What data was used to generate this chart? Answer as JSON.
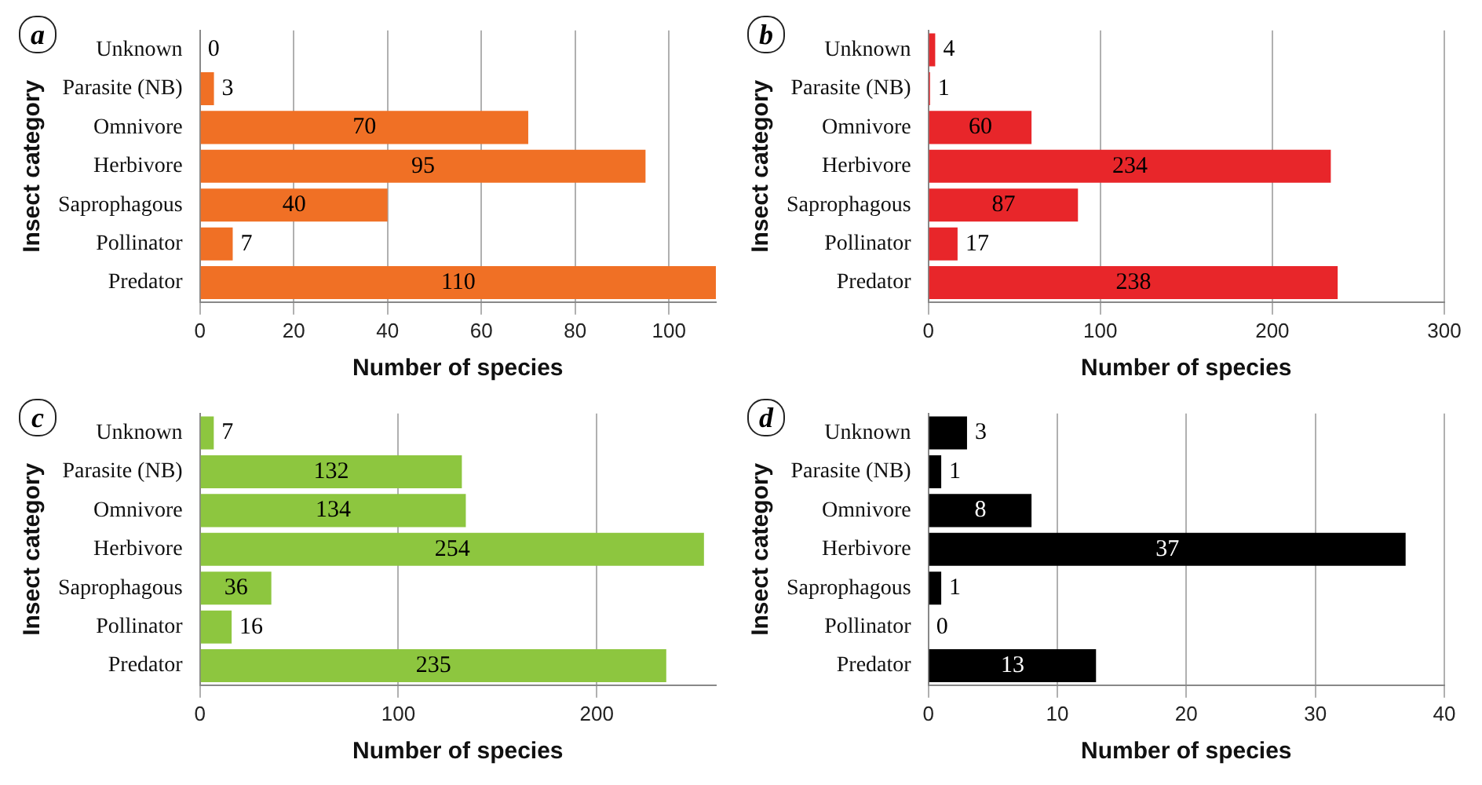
{
  "chart_data": [
    {
      "type": "bar",
      "orientation": "horizontal",
      "annotations": [
        "a"
      ],
      "categories": [
        "Unknown",
        "Parasite (NB)",
        "Omnivore",
        "Herbivore",
        "Saprophagous",
        "Pollinator",
        "Predator"
      ],
      "values": [
        0,
        3,
        70,
        95,
        40,
        7,
        110
      ],
      "color": "#f07025",
      "xlim": [
        0,
        110
      ],
      "xticks": [
        0,
        20,
        40,
        60,
        80,
        100
      ],
      "xlabel": "Number of species",
      "ylabel": "Insect category",
      "grid": "x",
      "data_labels": true
    },
    {
      "type": "bar",
      "orientation": "horizontal",
      "annotations": [
        "b"
      ],
      "categories": [
        "Unknown",
        "Parasite (NB)",
        "Omnivore",
        "Herbivore",
        "Saprophagous",
        "Pollinator",
        "Predator"
      ],
      "values": [
        4,
        1,
        60,
        234,
        87,
        17,
        238
      ],
      "color": "#e8262a",
      "xlim": [
        0,
        300
      ],
      "xticks": [
        0,
        100,
        200,
        300
      ],
      "xlabel": "Number of species",
      "ylabel": "Insect category",
      "grid": "x",
      "data_labels": true
    },
    {
      "type": "bar",
      "orientation": "horizontal",
      "annotations": [
        "c"
      ],
      "categories": [
        "Unknown",
        "Parasite (NB)",
        "Omnivore",
        "Herbivore",
        "Saprophagous",
        "Pollinator",
        "Predator"
      ],
      "values": [
        7,
        132,
        134,
        254,
        36,
        16,
        235
      ],
      "color": "#8dc63f",
      "xlim": [
        0,
        260
      ],
      "xticks": [
        0,
        100,
        200
      ],
      "xlabel": "Number of species",
      "ylabel": "Insect category",
      "grid": "x",
      "data_labels": true
    },
    {
      "type": "bar",
      "orientation": "horizontal",
      "annotations": [
        "d"
      ],
      "categories": [
        "Unknown",
        "Parasite (NB)",
        "Omnivore",
        "Herbivore",
        "Saprophagous",
        "Pollinator",
        "Predator"
      ],
      "values": [
        3,
        1,
        8,
        37,
        1,
        0,
        13
      ],
      "color": "#000000",
      "xlim": [
        0,
        40
      ],
      "xticks": [
        0,
        10,
        20,
        30,
        40
      ],
      "xlabel": "Number of species",
      "ylabel": "Insect category",
      "grid": "x",
      "data_labels": true
    }
  ]
}
